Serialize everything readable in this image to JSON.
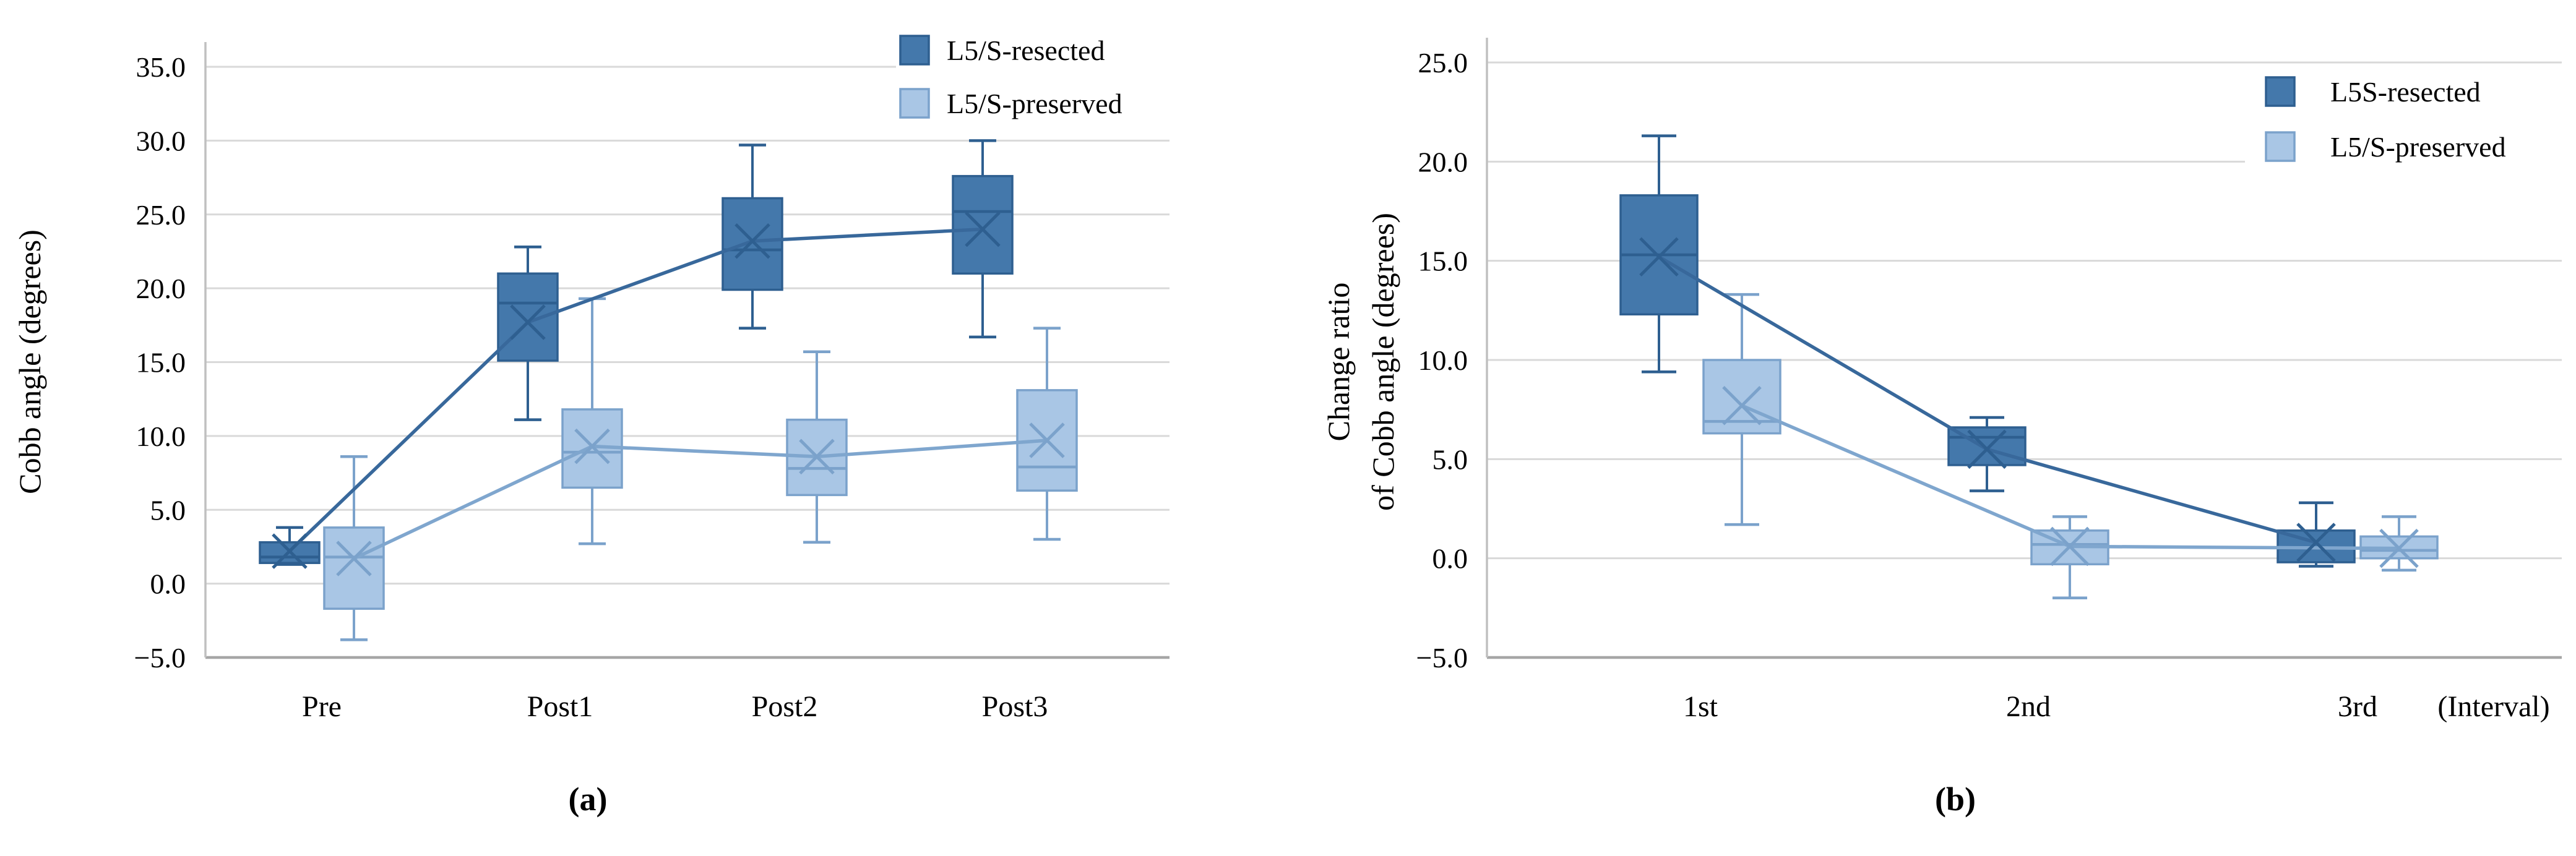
{
  "page": {
    "background": "#ffffff"
  },
  "colors": {
    "resected_fill": "#4478AB",
    "resected_border": "#2E5F90",
    "resected_line": "#38689B",
    "preserved_fill": "#A9C6E5",
    "preserved_border": "#7BA2CB",
    "preserved_line": "#7FA6CE",
    "gridline": "#D9D9D9",
    "axis": "#A6A6A6",
    "text": "#000000"
  },
  "chart_data": [
    {
      "id": "a",
      "type": "box",
      "caption": "(a)",
      "ylabel_lines": [
        "Cobb angle (degrees)"
      ],
      "ylim": [
        -5,
        35
      ],
      "ytick_step": 5,
      "ytick_labels": [
        "35.0",
        "30.0",
        "25.0",
        "20.0",
        "15.0",
        "10.0",
        "5.0",
        "0.0",
        "−5.0"
      ],
      "categories": [
        "Pre",
        "Post1",
        "Post2",
        "Post3"
      ],
      "x_axis_note": "",
      "grid": true,
      "legend_position": "top-right-inside",
      "series": [
        {
          "name": "L5/S-resected",
          "role": "resected",
          "means": [
            2.2,
            17.7,
            23.2,
            24.0
          ],
          "boxes": [
            {
              "category": "Pre",
              "whisker_low": 1.3,
              "q1": 1.4,
              "median": 1.8,
              "mean": 2.2,
              "q3": 2.8,
              "whisker_high": 3.8
            },
            {
              "category": "Post1",
              "whisker_low": 11.1,
              "q1": 15.1,
              "median": 19.0,
              "mean": 17.7,
              "q3": 21.0,
              "whisker_high": 22.8
            },
            {
              "category": "Post2",
              "whisker_low": 17.3,
              "q1": 19.9,
              "median": 22.6,
              "mean": 23.2,
              "q3": 26.1,
              "whisker_high": 29.7
            },
            {
              "category": "Post3",
              "whisker_low": 16.7,
              "q1": 21.0,
              "median": 25.2,
              "mean": 24.0,
              "q3": 27.6,
              "whisker_high": 30.0
            }
          ]
        },
        {
          "name": "L5/S-preserved",
          "role": "preserved",
          "means": [
            1.7,
            9.3,
            8.6,
            9.7
          ],
          "boxes": [
            {
              "category": "Pre",
              "whisker_low": -3.8,
              "q1": -1.7,
              "median": 1.8,
              "mean": 1.7,
              "q3": 3.8,
              "whisker_high": 8.6
            },
            {
              "category": "Post1",
              "whisker_low": 2.7,
              "q1": 6.5,
              "median": 8.9,
              "mean": 9.3,
              "q3": 11.8,
              "whisker_high": 19.3
            },
            {
              "category": "Post2",
              "whisker_low": 2.8,
              "q1": 6.0,
              "median": 7.8,
              "mean": 8.6,
              "q3": 11.1,
              "whisker_high": 15.7
            },
            {
              "category": "Post3",
              "whisker_low": 3.0,
              "q1": 6.3,
              "median": 7.9,
              "mean": 9.7,
              "q3": 13.1,
              "whisker_high": 17.3
            }
          ]
        }
      ]
    },
    {
      "id": "b",
      "type": "box",
      "caption": "(b)",
      "ylabel_lines": [
        "Change ratio",
        "of Cobb angle (degrees)"
      ],
      "ylim": [
        -5,
        25
      ],
      "ytick_step": 5,
      "ytick_labels": [
        "25.0",
        "20.0",
        "15.0",
        "10.0",
        "5.0",
        "0.0",
        "−5.0"
      ],
      "categories": [
        "1st",
        "2nd",
        "3rd"
      ],
      "x_axis_note": "(Interval)",
      "grid": true,
      "legend_position": "top-right-inside",
      "series": [
        {
          "name": "L5S-resected",
          "role": "resected",
          "means": [
            15.2,
            5.5,
            0.8
          ],
          "boxes": [
            {
              "category": "1st",
              "whisker_low": 9.4,
              "q1": 12.3,
              "median": 15.3,
              "mean": 15.2,
              "q3": 18.3,
              "whisker_high": 21.3
            },
            {
              "category": "2nd",
              "whisker_low": 3.4,
              "q1": 4.7,
              "median": 6.1,
              "mean": 5.5,
              "q3": 6.6,
              "whisker_high": 7.1
            },
            {
              "category": "3rd",
              "whisker_low": -0.4,
              "q1": -0.2,
              "median": 0.5,
              "mean": 0.8,
              "q3": 1.4,
              "whisker_high": 2.8
            }
          ]
        },
        {
          "name": "L5/S-preserved",
          "role": "preserved",
          "means": [
            7.7,
            0.6,
            0.5
          ],
          "boxes": [
            {
              "category": "1st",
              "whisker_low": 1.7,
              "q1": 6.3,
              "median": 6.9,
              "mean": 7.7,
              "q3": 10.0,
              "whisker_high": 13.3
            },
            {
              "category": "2nd",
              "whisker_low": -2.0,
              "q1": -0.3,
              "median": 0.7,
              "mean": 0.6,
              "q3": 1.4,
              "whisker_high": 2.1
            },
            {
              "category": "3rd",
              "whisker_low": -0.6,
              "q1": 0.0,
              "median": 0.4,
              "mean": 0.5,
              "q3": 1.1,
              "whisker_high": 2.1
            }
          ]
        }
      ]
    }
  ]
}
